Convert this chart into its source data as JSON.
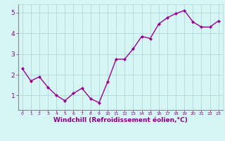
{
  "x": [
    0,
    1,
    2,
    3,
    4,
    5,
    6,
    7,
    8,
    9,
    10,
    11,
    12,
    13,
    14,
    15,
    16,
    17,
    18,
    19,
    20,
    21,
    22,
    23
  ],
  "y": [
    2.3,
    1.7,
    1.9,
    1.4,
    1.0,
    0.75,
    1.1,
    1.35,
    0.85,
    0.65,
    1.65,
    2.75,
    2.75,
    3.25,
    3.85,
    3.75,
    4.45,
    4.75,
    4.95,
    5.1,
    4.55,
    4.3,
    4.3,
    4.6
  ],
  "line_color": "#990099",
  "marker": "D",
  "marker_size": 2,
  "linewidth": 1.0,
  "xlabel": "Windchill (Refroidissement éolien,°C)",
  "xlabel_fontsize": 6.5,
  "background_color": "#d6f5f5",
  "grid_color": "#b0d8d8",
  "tick_label_color": "#880088",
  "axis_label_color": "#880088",
  "ylim": [
    0.3,
    5.4
  ],
  "xlim": [
    -0.5,
    23.5
  ],
  "yticks": [
    1,
    2,
    3,
    4,
    5
  ],
  "xticks": [
    0,
    1,
    2,
    3,
    4,
    5,
    6,
    7,
    8,
    9,
    10,
    11,
    12,
    13,
    14,
    15,
    16,
    17,
    18,
    19,
    20,
    21,
    22,
    23
  ]
}
